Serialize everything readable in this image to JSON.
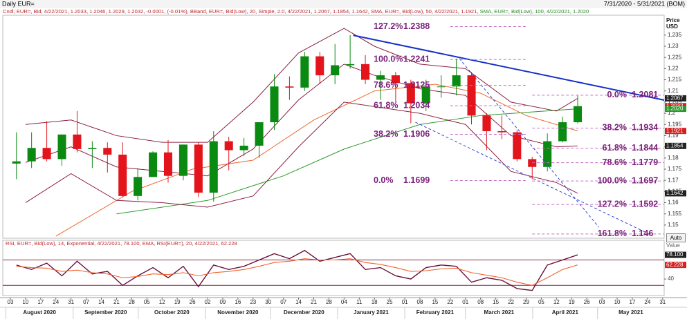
{
  "header": {
    "title": "Daily EUR=",
    "range": "7/31/2020 - 5/31/2021 (BOM)"
  },
  "controls": {
    "auto_button": "Auto"
  },
  "chart_data": [
    {
      "type": "candlestick",
      "legend_text": [
        "Cndl, EUR=, Bid, 4/22/2021, 1.2033, 1.2046, 1.2029, 1.2032, -0.0001, (-0.01%), BBand, EUR=, Bid(Low), 20, Simple, 2.0, 4/22/2021, 1.2067, 1.1854, 1.1642, SMA, EUR=, Bid(Low), 50, 4/22/2021, 1.1921,",
        "SMA, EUR=, Bid(Low), 100, 4/22/2021, 1.2020"
      ],
      "legend_colors": [
        "#c0282d",
        "#2a8a2a"
      ],
      "y_label": "Price USD",
      "up_color": "#0b8a12",
      "down_color": "#e3141c",
      "x": [
        0.4,
        1.4,
        2.4,
        3.4,
        4.4,
        5.4,
        6.4,
        7.4,
        8.4,
        9.4,
        10.4,
        11.4,
        12.4,
        13.4,
        14.4,
        15.4,
        16.4,
        17.4,
        18.4,
        19.4,
        20.4,
        21.4,
        22.4,
        23.4,
        24.4,
        25.4,
        26.4,
        27.4,
        28.4,
        29.4,
        30.4,
        31.4,
        32.4,
        33.4,
        34.4,
        35.4,
        36.4,
        37.4
      ],
      "open": [
        1.1775,
        1.1785,
        1.1845,
        1.1795,
        1.1905,
        1.184,
        1.1845,
        1.1815,
        1.163,
        1.1715,
        1.1825,
        1.172,
        1.186,
        1.1645,
        1.1875,
        1.1835,
        1.1855,
        1.196,
        1.212,
        1.2115,
        1.2255,
        1.217,
        1.2215,
        1.222,
        1.215,
        1.217,
        1.2135,
        1.2045,
        1.212,
        1.212,
        1.217,
        1.199,
        1.192,
        1.1915,
        1.1795,
        1.176,
        1.1875,
        1.196
      ],
      "high": [
        1.1915,
        1.1915,
        1.1965,
        1.1905,
        1.201,
        1.1875,
        1.187,
        1.187,
        1.1755,
        1.183,
        1.188,
        1.186,
        1.187,
        1.192,
        1.1895,
        1.189,
        1.196,
        1.2175,
        1.2165,
        1.2275,
        1.2275,
        1.231,
        1.235,
        1.226,
        1.219,
        1.2185,
        1.215,
        1.215,
        1.217,
        1.2245,
        1.2185,
        1.2,
        1.199,
        1.1925,
        1.1805,
        1.191,
        1.1985,
        1.208
      ],
      "low": [
        1.1705,
        1.1755,
        1.1785,
        1.1765,
        1.1825,
        1.1755,
        1.1735,
        1.1625,
        1.161,
        1.1715,
        1.169,
        1.17,
        1.1625,
        1.1605,
        1.1745,
        1.181,
        1.18,
        1.1925,
        1.206,
        1.21,
        1.213,
        1.213,
        1.22,
        1.213,
        1.206,
        1.205,
        1.1955,
        1.201,
        1.207,
        1.208,
        1.195,
        1.1835,
        1.1885,
        1.1785,
        1.1705,
        1.174,
        1.187,
        1.1955
      ],
      "close": [
        1.1785,
        1.1845,
        1.1795,
        1.1905,
        1.184,
        1.1845,
        1.1815,
        1.163,
        1.1715,
        1.1825,
        1.172,
        1.186,
        1.1645,
        1.1875,
        1.1835,
        1.1855,
        1.196,
        1.212,
        1.2115,
        1.2255,
        1.217,
        1.2215,
        1.222,
        1.215,
        1.217,
        1.2135,
        1.2045,
        1.212,
        1.212,
        1.217,
        1.199,
        1.192,
        1.1915,
        1.1795,
        1.176,
        1.1875,
        1.196,
        1.2032
      ],
      "overlays": [
        {
          "color": "#2a9a2a",
          "x": [
            7,
            13,
            18,
            22,
            27,
            31,
            37.4
          ],
          "values": [
            1.155,
            1.161,
            1.172,
            1.184,
            1.195,
            1.199,
            1.202
          ]
        },
        {
          "color": "#f0642c",
          "x": [
            3,
            8,
            12,
            16,
            20,
            24,
            28,
            31,
            34,
            37.4
          ],
          "values": [
            1.145,
            1.165,
            1.175,
            1.179,
            1.197,
            1.21,
            1.213,
            1.209,
            1.199,
            1.1921
          ]
        },
        {
          "color": "#8b2040",
          "x": [
            1,
            4,
            7,
            10,
            13,
            16,
            19,
            22,
            24,
            27,
            30,
            33,
            36,
            37.4
          ],
          "values": [
            1.195,
            1.197,
            1.19,
            1.187,
            1.187,
            1.205,
            1.227,
            1.238,
            1.23,
            1.222,
            1.22,
            1.205,
            1.201,
            1.2067
          ]
        },
        {
          "color": "#8b2040",
          "x": [
            1,
            4,
            7,
            10,
            13,
            16,
            19,
            22,
            24,
            27,
            30,
            33,
            36,
            37.4
          ],
          "values": [
            1.178,
            1.185,
            1.176,
            1.174,
            1.172,
            1.184,
            1.206,
            1.222,
            1.217,
            1.211,
            1.208,
            1.19,
            1.185,
            1.1854
          ]
        },
        {
          "color": "#8b2040",
          "x": [
            1,
            4,
            7,
            10,
            13,
            16,
            19,
            22,
            24,
            27,
            30,
            33,
            36,
            37.4
          ],
          "values": [
            1.16,
            1.173,
            1.161,
            1.16,
            1.158,
            1.163,
            1.185,
            1.205,
            1.203,
            1.2,
            1.195,
            1.174,
            1.169,
            1.1642
          ]
        }
      ],
      "trendlines": [
        {
          "color": "#1530c8",
          "dashed": false,
          "x": [
            22.6,
            43.1
          ],
          "y": [
            1.2349,
            1.2059
          ]
        },
        {
          "color": "#3048d0",
          "dashed": true,
          "x": [
            26.7,
            42.2
          ],
          "y": [
            1.196,
            1.1457
          ]
        },
        {
          "color": "#3048d0",
          "dashed": true,
          "x": [
            29.6,
            38.8
          ],
          "y": [
            1.2245,
            1.149
          ]
        }
      ],
      "fib_color": "#7a1f7a",
      "fib_left_x": [
        29.0,
        34.0
      ],
      "fib_left": [
        {
          "label": "127.2%",
          "value": 1.2388
        },
        {
          "label": "100.0%",
          "value": 1.2241
        },
        {
          "label": "78.6%",
          "value": 1.2125
        },
        {
          "label": "61.8%",
          "value": 1.2034
        },
        {
          "label": "38.2%",
          "value": 1.1906
        },
        {
          "label": "0.0%",
          "value": 1.1699
        }
      ],
      "fib_right_x": [
        34.4,
        43.1
      ],
      "fib_right": [
        {
          "label": "0.0%",
          "value": 1.2081
        },
        {
          "label": "38.2%",
          "value": 1.1934
        },
        {
          "label": "61.8%",
          "value": 1.1844
        },
        {
          "label": "78.6%",
          "value": 1.1779
        },
        {
          "label": "100.0%",
          "value": 1.1697
        },
        {
          "label": "127.2%",
          "value": 1.1592
        },
        {
          "label": "161.8%",
          "value": 1.146
        }
      ],
      "price_tags": [
        {
          "value": 1.2067,
          "color": "#222222"
        },
        {
          "value": 1.2032,
          "color": "#d42020"
        },
        {
          "value": 1.202,
          "label": "1.2020",
          "color": "#2a9a2a"
        },
        {
          "value": 1.1921,
          "color": "#d42020"
        },
        {
          "value": 1.1854,
          "color": "#222222"
        },
        {
          "value": 1.1642,
          "color": "#222222"
        }
      ],
      "xlim": [
        -0.5,
        43.1
      ],
      "ylim": [
        1.1441,
        1.2439
      ],
      "yticks": [
        1.235,
        1.23,
        1.225,
        1.22,
        1.215,
        1.21,
        1.205,
        1.2,
        1.195,
        1.19,
        1.185,
        1.18,
        1.175,
        1.17,
        1.165,
        1.16,
        1.155,
        1.15
      ],
      "xticks": [
        {
          "value": 0,
          "label": "03"
        },
        {
          "value": 1,
          "label": "10"
        },
        {
          "value": 2,
          "label": "17"
        },
        {
          "value": 3,
          "label": "24"
        },
        {
          "value": 4,
          "label": "31"
        },
        {
          "value": 5,
          "label": "07"
        },
        {
          "value": 6,
          "label": "14"
        },
        {
          "value": 7,
          "label": "21"
        },
        {
          "value": 8,
          "label": "28"
        },
        {
          "value": 9,
          "label": "05"
        },
        {
          "value": 10,
          "label": "12"
        },
        {
          "value": 11,
          "label": "19"
        },
        {
          "value": 12,
          "label": "26"
        },
        {
          "value": 13,
          "label": "02"
        },
        {
          "value": 14,
          "label": "09"
        },
        {
          "value": 15,
          "label": "16"
        },
        {
          "value": 16,
          "label": "23"
        },
        {
          "value": 17,
          "label": "30"
        },
        {
          "value": 18,
          "label": "07"
        },
        {
          "value": 19,
          "label": "14"
        },
        {
          "value": 20,
          "label": "21"
        },
        {
          "value": 21,
          "label": "28"
        },
        {
          "value": 22,
          "label": "04"
        },
        {
          "value": 23,
          "label": "11"
        },
        {
          "value": 24,
          "label": "18"
        },
        {
          "value": 25,
          "label": "25"
        },
        {
          "value": 26,
          "label": "01"
        },
        {
          "value": 27,
          "label": "08"
        },
        {
          "value": 28,
          "label": "15"
        },
        {
          "value": 29,
          "label": "22"
        },
        {
          "value": 30,
          "label": "01"
        },
        {
          "value": 31,
          "label": "08"
        },
        {
          "value": 32,
          "label": "15"
        },
        {
          "value": 33,
          "label": "22"
        },
        {
          "value": 34,
          "label": "29"
        },
        {
          "value": 35,
          "label": "05"
        },
        {
          "value": 36,
          "label": "12"
        },
        {
          "value": 37,
          "label": "19"
        },
        {
          "value": 38,
          "label": "26"
        },
        {
          "value": 39,
          "label": "03"
        },
        {
          "value": 40,
          "label": "10"
        },
        {
          "value": 41,
          "label": "17"
        },
        {
          "value": 42,
          "label": "24"
        },
        {
          "value": 43,
          "label": "31"
        }
      ],
      "months": [
        {
          "value": -0.29,
          "label": "August 2020"
        },
        {
          "value": 4.14,
          "label": "September 2020"
        },
        {
          "value": 8.43,
          "label": "October 2020"
        },
        {
          "value": 12.86,
          "label": "November 2020"
        },
        {
          "value": 17.14,
          "label": "December 2020"
        },
        {
          "value": 21.57,
          "label": "January 2021"
        },
        {
          "value": 26,
          "label": "February 2021"
        },
        {
          "value": 30,
          "label": "March 2021"
        },
        {
          "value": 34.43,
          "label": "April 2021"
        },
        {
          "value": 38.71,
          "label": "May 2021"
        }
      ]
    },
    {
      "type": "line",
      "title": "RSI, EUR=, Bid(Low), 14, Exponential, 4/22/2021, 78.100, EMA, RSI(EUR=), 20, 4/22/2021, 62.228",
      "y_label": "Value",
      "x": [
        0.4,
        1.4,
        2.4,
        3.4,
        4.4,
        5.4,
        6.4,
        7.4,
        8.4,
        9.4,
        10.4,
        11.4,
        12.4,
        13.4,
        14.4,
        15.4,
        16.4,
        17.4,
        18.4,
        19.4,
        20.4,
        21.4,
        22.4,
        23.4,
        24.4,
        25.4,
        26.4,
        27.4,
        28.4,
        29.4,
        30.4,
        31.4,
        32.4,
        33.4,
        34.4,
        35.4,
        36.4,
        37.4
      ],
      "series": [
        {
          "color": "#6b0f3a",
          "values": [
            62,
            55,
            65,
            45,
            68,
            48,
            52,
            30,
            45,
            58,
            42,
            60,
            28,
            62,
            55,
            60,
            70,
            80,
            72,
            85,
            68,
            74,
            80,
            55,
            58,
            45,
            40,
            58,
            62,
            60,
            35,
            42,
            38,
            25,
            22,
            62,
            70,
            78.1
          ]
        },
        {
          "color": "#f0642c",
          "values": [
            60,
            58,
            57,
            52,
            54,
            50,
            48,
            42,
            44,
            48,
            47,
            50,
            45,
            50,
            52,
            55,
            60,
            66,
            68,
            72,
            70,
            70,
            72,
            66,
            63,
            58,
            52,
            53,
            56,
            57,
            50,
            46,
            42,
            35,
            30,
            42,
            55,
            62.228
          ]
        }
      ],
      "hlines": [
        70,
        30
      ],
      "hline_color": "#8b2040",
      "tags": [
        {
          "value": 78.1,
          "label": "78.100",
          "color": "#222222"
        },
        {
          "value": 62.228,
          "color": "#d42020"
        }
      ],
      "xlim": [
        -0.5,
        43.1
      ],
      "ylim": [
        14,
        101
      ],
      "yticks": [
        40
      ]
    }
  ]
}
